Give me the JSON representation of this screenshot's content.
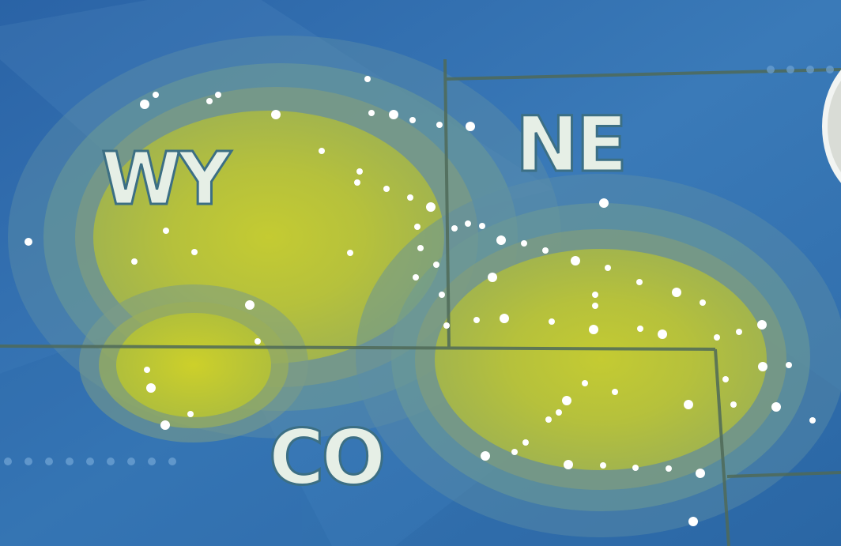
{
  "map": {
    "labels": {
      "wyoming": "WY",
      "nebraska": "NE",
      "colorado": "CO"
    },
    "colors": {
      "ocean_blue": "#2f6fb0",
      "glow_outer": "#6f9fa0",
      "glow_inner": "#c8cf30",
      "border_line": "#4f6a58",
      "label_fill": "#e6efe6",
      "label_stroke": "#3c6f84",
      "point_color": "#ffffff"
    },
    "legend": "none"
  }
}
